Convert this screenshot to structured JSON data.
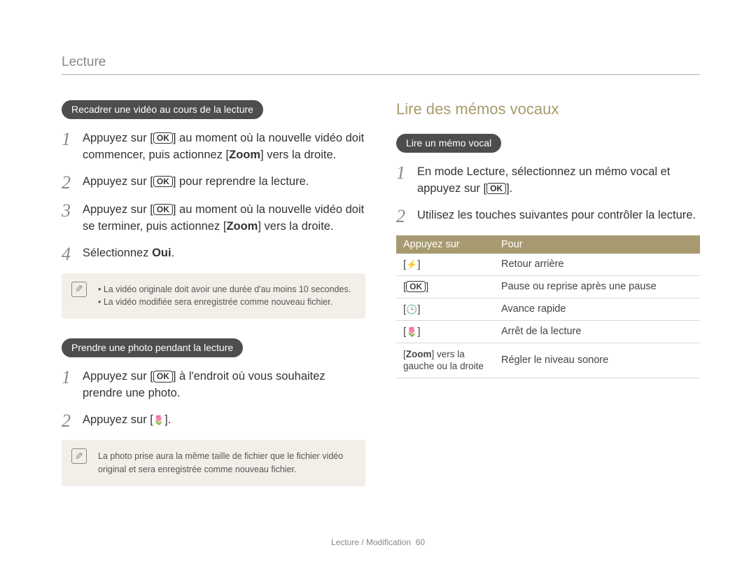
{
  "header": "Lecture",
  "left": {
    "section1": {
      "pill": "Recadrer une vidéo au cours de la lecture",
      "steps": [
        {
          "pre": "Appuyez sur [",
          "icon": "OK",
          "post": "] au moment où la nouvelle vidéo doit commencer, puis actionnez [",
          "bold": "Zoom",
          "tail": "] vers la droite."
        },
        {
          "pre": "Appuyez sur [",
          "icon": "OK",
          "post": "] pour reprendre la lecture."
        },
        {
          "pre": "Appuyez sur [",
          "icon": "OK",
          "post": "] au moment où la nouvelle vidéo doit se terminer, puis actionnez [",
          "bold": "Zoom",
          "tail": "] vers la droite."
        },
        {
          "pre": "Sélectionnez ",
          "bold": "Oui",
          "tail": "."
        }
      ],
      "notes": [
        "La vidéo originale doit avoir une durée d'au moins 10 secondes.",
        "La vidéo modifiée sera enregistrée comme nouveau fichier."
      ]
    },
    "section2": {
      "pill": "Prendre une photo pendant la lecture",
      "steps": [
        {
          "pre": "Appuyez sur [",
          "icon": "OK",
          "post": "] à l'endroit où vous souhaitez prendre une photo."
        },
        {
          "pre": "Appuyez sur [",
          "icon": "macro",
          "post": "]."
        }
      ],
      "note": "La photo prise aura la même taille de fichier que le fichier vidéo original et sera enregistrée comme nouveau fichier."
    }
  },
  "right": {
    "title": "Lire des mémos vocaux",
    "pill": "Lire un mémo vocal",
    "steps": [
      {
        "pre": "En mode Lecture, sélectionnez un mémo vocal et appuyez sur [",
        "icon": "OK",
        "post": "]."
      },
      {
        "text": "Utilisez les touches suivantes pour contrôler la lecture."
      }
    ],
    "table": {
      "headers": [
        "Appuyez sur",
        "Pour"
      ],
      "rows": [
        {
          "key_icon": "flash",
          "desc": "Retour arrière"
        },
        {
          "key_icon": "OK",
          "desc": "Pause ou reprise après une pause"
        },
        {
          "key_icon": "timer",
          "desc": "Avance rapide"
        },
        {
          "key_icon": "macro",
          "desc": "Arrêt de la lecture"
        },
        {
          "key_text_pre": "[",
          "key_bold": "Zoom",
          "key_text_post": "] vers la gauche ou la droite",
          "desc": "Régler le niveau sonore"
        }
      ]
    }
  },
  "footer": {
    "text": "Lecture / Modification",
    "page": "60"
  }
}
